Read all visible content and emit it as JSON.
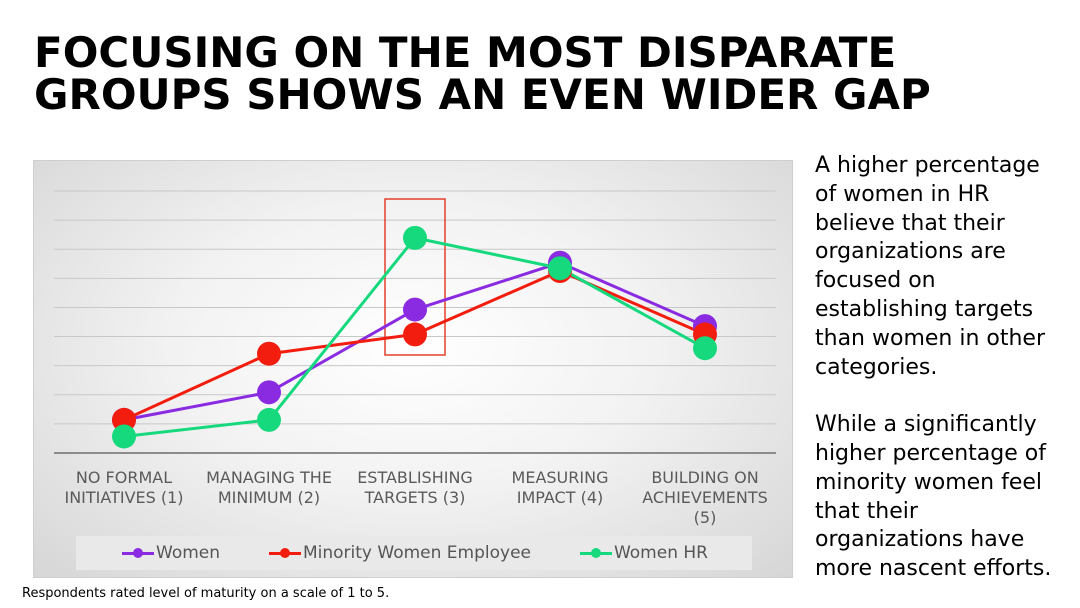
{
  "title_lines": [
    "FOCUSING ON THE MOST DISPARATE",
    "GROUPS SHOWS AN EVEN WIDER GAP"
  ],
  "side_text": [
    "A higher percentage of women in HR believe that their organizations are focused on establishing targets than women in other categories.",
    "While a significantly higher percentage of minority women feel that their organizations have more nascent efforts."
  ],
  "footnote": "Respondents rated level of maturity on a scale of 1 to 5.",
  "highlight_category": "ESTABLISHING TARGETS (3)",
  "colors": {
    "women": "#8a2be2",
    "minority": "#f21d0f",
    "hr": "#16d97e",
    "highlight": "#e4402b"
  },
  "chart_data": {
    "type": "line",
    "categories": [
      [
        "NO FORMAL",
        "INITIATIVES (1)"
      ],
      [
        "MANAGING THE",
        "MINIMUM (2)"
      ],
      [
        "ESTABLISHING",
        "TARGETS (3)"
      ],
      [
        "MEASURING",
        "IMPACT (4)"
      ],
      [
        "BUILDING ON",
        "ACHIEVEMENTS",
        "(5)"
      ]
    ],
    "series": [
      {
        "name": "Women",
        "color": "#8a2be2",
        "values": [
          1.2,
          2.2,
          5.2,
          6.9,
          4.6
        ]
      },
      {
        "name": "Minority Women Employee",
        "color": "#f21d0f",
        "values": [
          1.2,
          3.6,
          4.3,
          6.6,
          4.3
        ]
      },
      {
        "name": "Women HR",
        "color": "#16d97e",
        "values": [
          0.6,
          1.2,
          7.8,
          6.7,
          3.8
        ]
      }
    ],
    "ylim": [
      0,
      9.5
    ],
    "grid": true,
    "legend_position": "bottom"
  }
}
